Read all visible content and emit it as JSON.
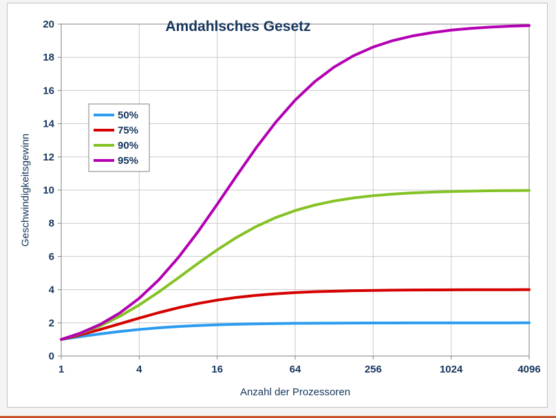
{
  "page": {
    "background": "#F4F4F4",
    "bottom_accent_color": "#C9552D"
  },
  "chart_data": {
    "type": "line",
    "title": "Amdahlsches Gesetz",
    "xlabel": "Anzahl der Prozessoren",
    "ylabel": "Geschwindigkeitsgewinn",
    "x_scale": "log2",
    "x_ticks": [
      1,
      4,
      16,
      64,
      256,
      1024,
      4096
    ],
    "ylim": [
      0,
      20
    ],
    "y_tick_step": 2,
    "grid": true,
    "legend_position": "upper-left-inside",
    "x": [
      1,
      1.41,
      2,
      2.83,
      4,
      5.66,
      8,
      11.31,
      16,
      22.63,
      32,
      45.25,
      64,
      90.51,
      128,
      181.02,
      256,
      362.04,
      512,
      724.08,
      1024,
      1448.15,
      2048,
      2896.31,
      4096
    ],
    "series": [
      {
        "name": "50%",
        "color": "#2D9BF0",
        "values": [
          1.0,
          1.172,
          1.333,
          1.478,
          1.6,
          1.7,
          1.778,
          1.838,
          1.882,
          1.915,
          1.939,
          1.957,
          1.969,
          1.978,
          1.984,
          1.989,
          1.992,
          1.994,
          1.996,
          1.997,
          1.998,
          1.999,
          1.999,
          1.999,
          2.0
        ]
      },
      {
        "name": "75%",
        "color": "#D40000",
        "values": [
          1.0,
          1.281,
          1.6,
          1.941,
          2.286,
          2.614,
          2.909,
          3.162,
          3.368,
          3.532,
          3.657,
          3.751,
          3.821,
          3.872,
          3.908,
          3.935,
          3.954,
          3.967,
          3.977,
          3.984,
          3.988,
          3.992,
          3.994,
          3.996,
          3.997
        ]
      },
      {
        "name": "90%",
        "color": "#84C225",
        "values": [
          1.0,
          1.358,
          1.818,
          2.391,
          3.077,
          3.86,
          4.706,
          5.569,
          6.4,
          7.154,
          7.805,
          8.341,
          8.767,
          9.096,
          9.343,
          9.526,
          9.66,
          9.757,
          9.827,
          9.877,
          9.913,
          9.938,
          9.956,
          9.969,
          9.978
        ]
      },
      {
        "name": "95%",
        "color": "#B300B3",
        "values": [
          1.0,
          1.385,
          1.905,
          2.592,
          3.478,
          4.589,
          5.926,
          7.464,
          9.143,
          10.872,
          12.549,
          14.086,
          15.421,
          16.53,
          17.415,
          18.1,
          18.618,
          19.003,
          19.283,
          19.481,
          19.636,
          19.741,
          19.817,
          19.874,
          19.908
        ]
      }
    ],
    "colors": {
      "text": "#17365D",
      "grid": "#C9C9C9",
      "axis": "#808080",
      "plot_background": "#FFFFFF",
      "legend_border": "#808080"
    }
  }
}
